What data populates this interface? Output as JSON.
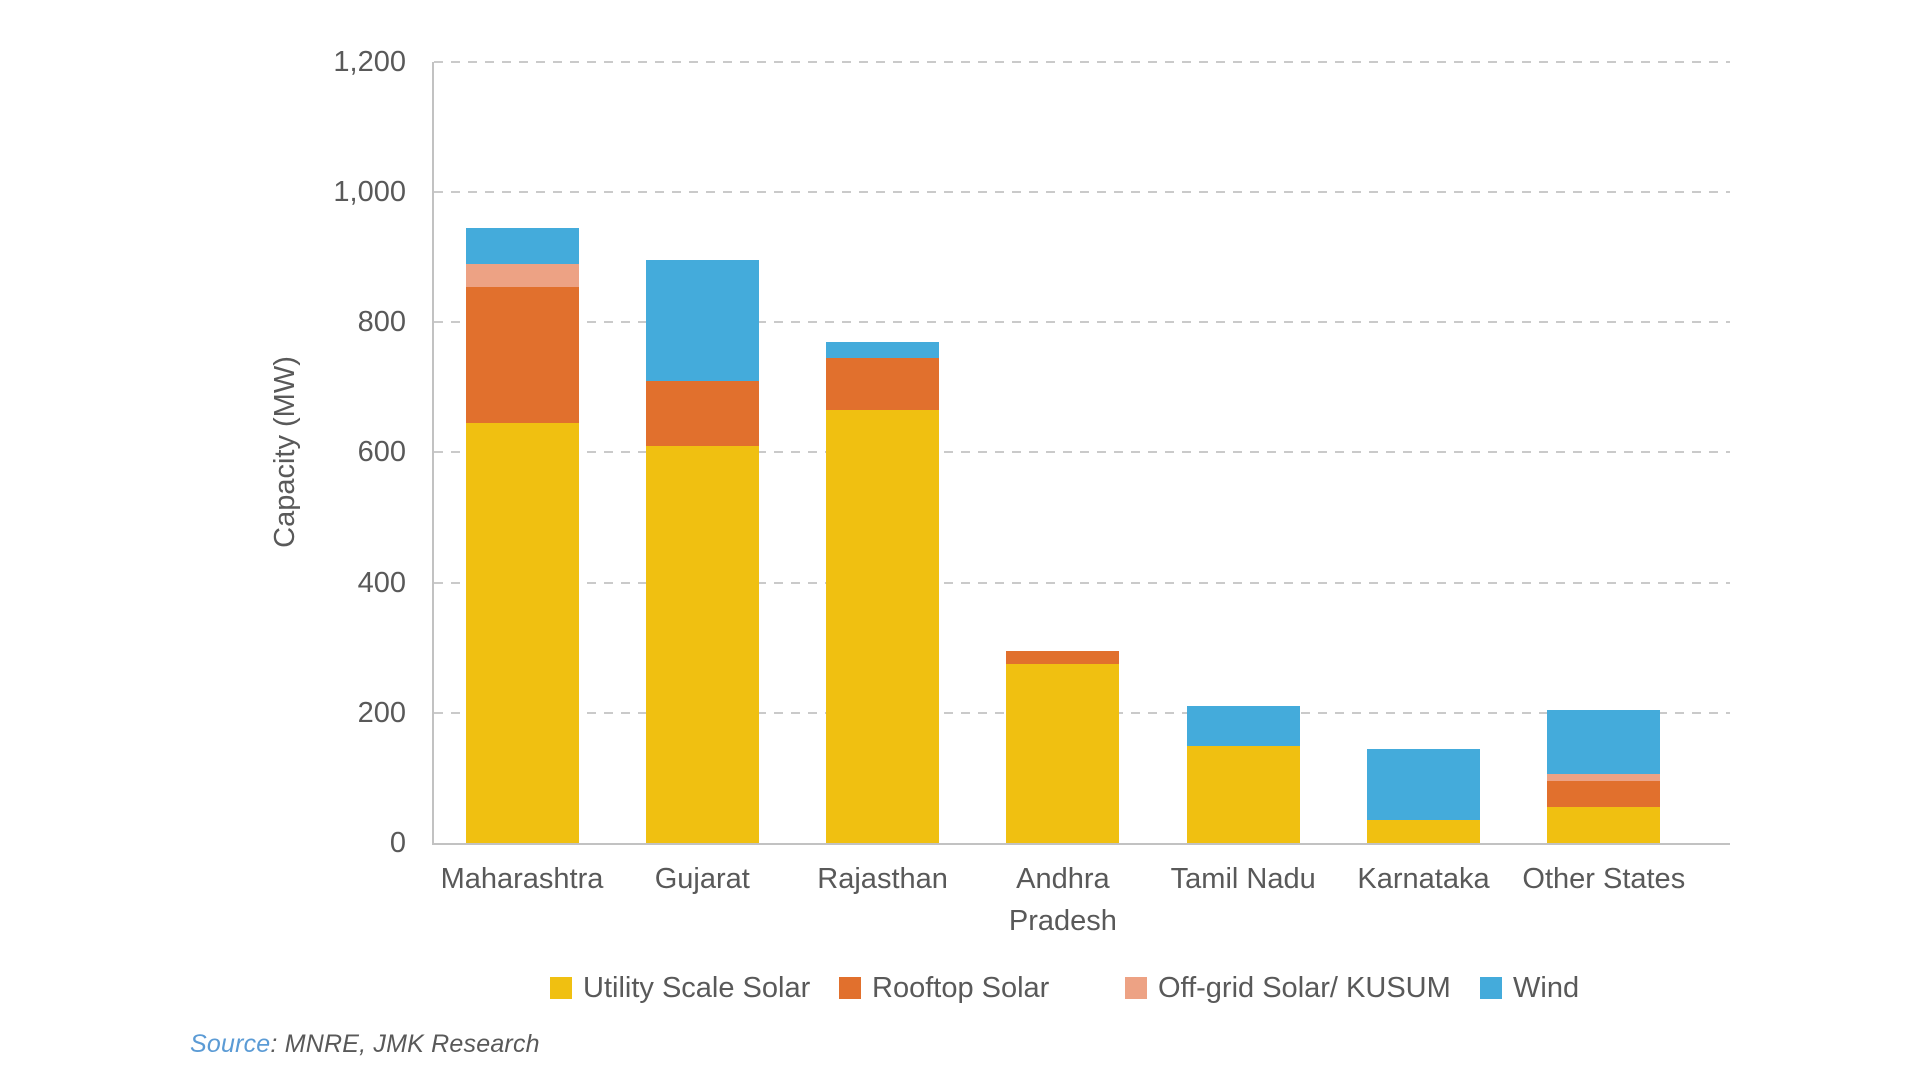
{
  "colors": {
    "text": "#595959",
    "grid": "#cacaca",
    "axis": "#c2c2c2",
    "source_label": "#5b9bd5"
  },
  "chart_data": {
    "type": "bar",
    "stacked": true,
    "title": "",
    "xlabel": "",
    "ylabel": "Capacity (MW)",
    "ylim": [
      0,
      1200
    ],
    "ytick_interval": 200,
    "ytick_labels": [
      "0",
      "200",
      "400",
      "600",
      "800",
      "1,000",
      "1,200"
    ],
    "grid": "horizontal-dashed",
    "legend_position": "bottom",
    "categories": [
      "Maharashtra",
      "Gujarat",
      "Rajasthan",
      "Andhra Pradesh",
      "Tamil Nadu",
      "Karnataka",
      "Other States"
    ],
    "series": [
      {
        "name": "Utility Scale Solar",
        "color": "#F0C011",
        "values": [
          645,
          610,
          665,
          275,
          148,
          35,
          55
        ]
      },
      {
        "name": "Rooftop Solar",
        "color": "#E1702D",
        "values": [
          210,
          100,
          80,
          20,
          0,
          0,
          40
        ]
      },
      {
        "name": "Off-grid Solar/ KUSUM",
        "color": "#EDA284",
        "values": [
          35,
          0,
          0,
          0,
          0,
          0,
          12
        ]
      },
      {
        "name": "Wind",
        "color": "#44ABDB",
        "values": [
          55,
          185,
          25,
          0,
          62,
          110,
          98
        ]
      }
    ]
  },
  "source": {
    "label": "Source",
    "text": ": MNRE, JMK Research"
  }
}
